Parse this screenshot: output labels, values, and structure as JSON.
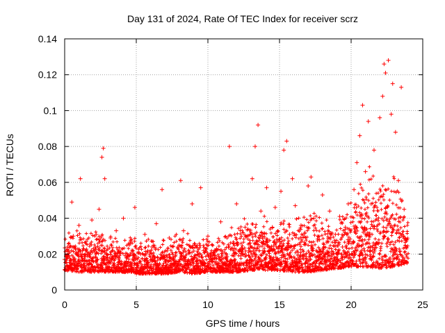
{
  "chart_data": {
    "type": "scatter",
    "title": "Day 131 of 2024, Rate Of TEC Index for receiver scrz",
    "xlabel": "GPS time / hours",
    "ylabel": "ROTI / TECUs",
    "xlim": [
      0,
      25
    ],
    "ylim": [
      0,
      0.14
    ],
    "xticks": [
      0,
      5,
      10,
      15,
      20,
      25
    ],
    "xtick_labels": [
      "0",
      "5",
      "10",
      "15",
      "20",
      "25"
    ],
    "yticks": [
      0,
      0.02,
      0.04,
      0.06,
      0.08,
      0.1,
      0.12,
      0.14
    ],
    "ytick_labels": [
      "0",
      "0.02",
      "0.04",
      "0.06",
      "0.08",
      "0.1",
      "0.12",
      "0.14"
    ],
    "grid": true,
    "marker": "+",
    "color": "#ff0000",
    "series": [
      {
        "name": "ROTI",
        "points": [
          [
            0.0,
            0.017
          ],
          [
            0.2,
            0.024
          ],
          [
            0.4,
            0.013
          ],
          [
            0.5,
            0.049
          ],
          [
            0.6,
            0.03
          ],
          [
            0.8,
            0.021
          ],
          [
            1.0,
            0.036
          ],
          [
            1.1,
            0.062
          ],
          [
            1.3,
            0.016
          ],
          [
            1.5,
            0.027
          ],
          [
            1.7,
            0.019
          ],
          [
            1.9,
            0.039
          ],
          [
            2.0,
            0.023
          ],
          [
            2.2,
            0.031
          ],
          [
            2.4,
            0.045
          ],
          [
            2.6,
            0.074
          ],
          [
            2.7,
            0.079
          ],
          [
            2.8,
            0.062
          ],
          [
            3.0,
            0.018
          ],
          [
            3.2,
            0.029
          ],
          [
            3.4,
            0.014
          ],
          [
            3.6,
            0.033
          ],
          [
            3.9,
            0.021
          ],
          [
            4.1,
            0.04
          ],
          [
            4.3,
            0.016
          ],
          [
            4.6,
            0.026
          ],
          [
            4.9,
            0.046
          ],
          [
            5.1,
            0.011
          ],
          [
            5.3,
            0.02
          ],
          [
            5.6,
            0.031
          ],
          [
            5.8,
            0.015
          ],
          [
            6.1,
            0.024
          ],
          [
            6.4,
            0.037
          ],
          [
            6.6,
            0.012
          ],
          [
            6.8,
            0.056
          ],
          [
            7.0,
            0.019
          ],
          [
            7.3,
            0.029
          ],
          [
            7.6,
            0.014
          ],
          [
            7.9,
            0.024
          ],
          [
            8.1,
            0.061
          ],
          [
            8.3,
            0.033
          ],
          [
            8.6,
            0.016
          ],
          [
            8.9,
            0.048
          ],
          [
            9.2,
            0.012
          ],
          [
            9.5,
            0.057
          ],
          [
            9.7,
            0.022
          ],
          [
            10.0,
            0.03
          ],
          [
            10.3,
            0.016
          ],
          [
            10.6,
            0.023
          ],
          [
            10.9,
            0.038
          ],
          [
            11.2,
            0.014
          ],
          [
            11.5,
            0.08
          ],
          [
            11.8,
            0.026
          ],
          [
            12.0,
            0.048
          ],
          [
            12.3,
            0.019
          ],
          [
            12.6,
            0.035
          ],
          [
            12.9,
            0.022
          ],
          [
            13.1,
            0.062
          ],
          [
            13.3,
            0.08
          ],
          [
            13.5,
            0.092
          ],
          [
            13.7,
            0.044
          ],
          [
            13.9,
            0.027
          ],
          [
            14.1,
            0.057
          ],
          [
            14.3,
            0.019
          ],
          [
            14.5,
            0.035
          ],
          [
            14.7,
            0.046
          ],
          [
            14.9,
            0.023
          ],
          [
            15.1,
            0.055
          ],
          [
            15.3,
            0.078
          ],
          [
            15.5,
            0.083
          ],
          [
            15.7,
            0.031
          ],
          [
            15.9,
            0.062
          ],
          [
            16.1,
            0.047
          ],
          [
            16.3,
            0.021
          ],
          [
            16.5,
            0.036
          ],
          [
            16.8,
            0.015
          ],
          [
            17.0,
            0.058
          ],
          [
            17.2,
            0.063
          ],
          [
            17.4,
            0.04
          ],
          [
            17.6,
            0.011
          ],
          [
            17.8,
            0.028
          ],
          [
            18.0,
            0.053
          ],
          [
            18.2,
            0.02
          ],
          [
            18.5,
            0.044
          ],
          [
            18.7,
            0.016
          ],
          [
            18.9,
            0.031
          ],
          [
            19.2,
            0.041
          ],
          [
            19.4,
            0.024
          ],
          [
            19.6,
            0.035
          ],
          [
            19.8,
            0.048
          ],
          [
            20.0,
            0.026
          ],
          [
            20.2,
            0.056
          ],
          [
            20.4,
            0.071
          ],
          [
            20.6,
            0.086
          ],
          [
            20.8,
            0.103
          ],
          [
            21.0,
            0.066
          ],
          [
            21.2,
            0.094
          ],
          [
            21.4,
            0.048
          ],
          [
            21.6,
            0.078
          ],
          [
            21.8,
            0.034
          ],
          [
            22.0,
            0.096
          ],
          [
            22.2,
            0.108
          ],
          [
            22.3,
            0.126
          ],
          [
            22.4,
            0.121
          ],
          [
            22.6,
            0.128
          ],
          [
            22.8,
            0.098
          ],
          [
            22.9,
            0.115
          ],
          [
            23.1,
            0.088
          ],
          [
            23.3,
            0.061
          ],
          [
            23.5,
            0.113
          ],
          [
            23.7,
            0.045
          ],
          [
            23.9,
            0.028
          ]
        ],
        "band": {
          "x": [
            0,
            1,
            2,
            3,
            4,
            5,
            6,
            7,
            8,
            9,
            10,
            11,
            12,
            13,
            14,
            15,
            16,
            17,
            18,
            19,
            20,
            21,
            22,
            23,
            24
          ],
          "low": [
            0.011,
            0.01,
            0.01,
            0.01,
            0.01,
            0.009,
            0.009,
            0.009,
            0.01,
            0.009,
            0.01,
            0.01,
            0.01,
            0.011,
            0.011,
            0.011,
            0.01,
            0.01,
            0.011,
            0.012,
            0.013,
            0.013,
            0.012,
            0.013,
            0.015
          ],
          "high": [
            0.033,
            0.036,
            0.037,
            0.033,
            0.032,
            0.03,
            0.03,
            0.031,
            0.034,
            0.03,
            0.03,
            0.032,
            0.04,
            0.046,
            0.044,
            0.042,
            0.042,
            0.048,
            0.045,
            0.04,
            0.052,
            0.072,
            0.075,
            0.07,
            0.042
          ]
        }
      }
    ]
  }
}
